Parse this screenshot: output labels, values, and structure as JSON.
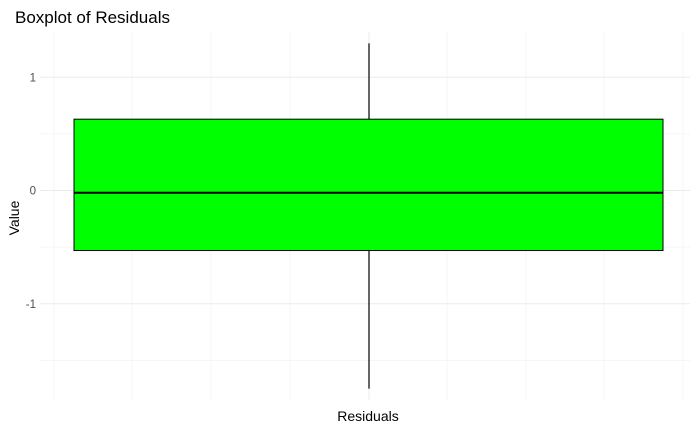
{
  "chart_data": {
    "type": "boxplot",
    "title": "Boxplot of Residuals",
    "xlabel": "Residuals",
    "ylabel": "Value",
    "y_ticks": [
      -1,
      0,
      1
    ],
    "ylim": [
      -1.85,
      1.4
    ],
    "grid": true,
    "box": {
      "min": -1.75,
      "q1": -0.53,
      "median": -0.02,
      "q3": 0.63,
      "max": 1.3,
      "fill_color": "#00FF00",
      "line_color": "#000000"
    }
  }
}
